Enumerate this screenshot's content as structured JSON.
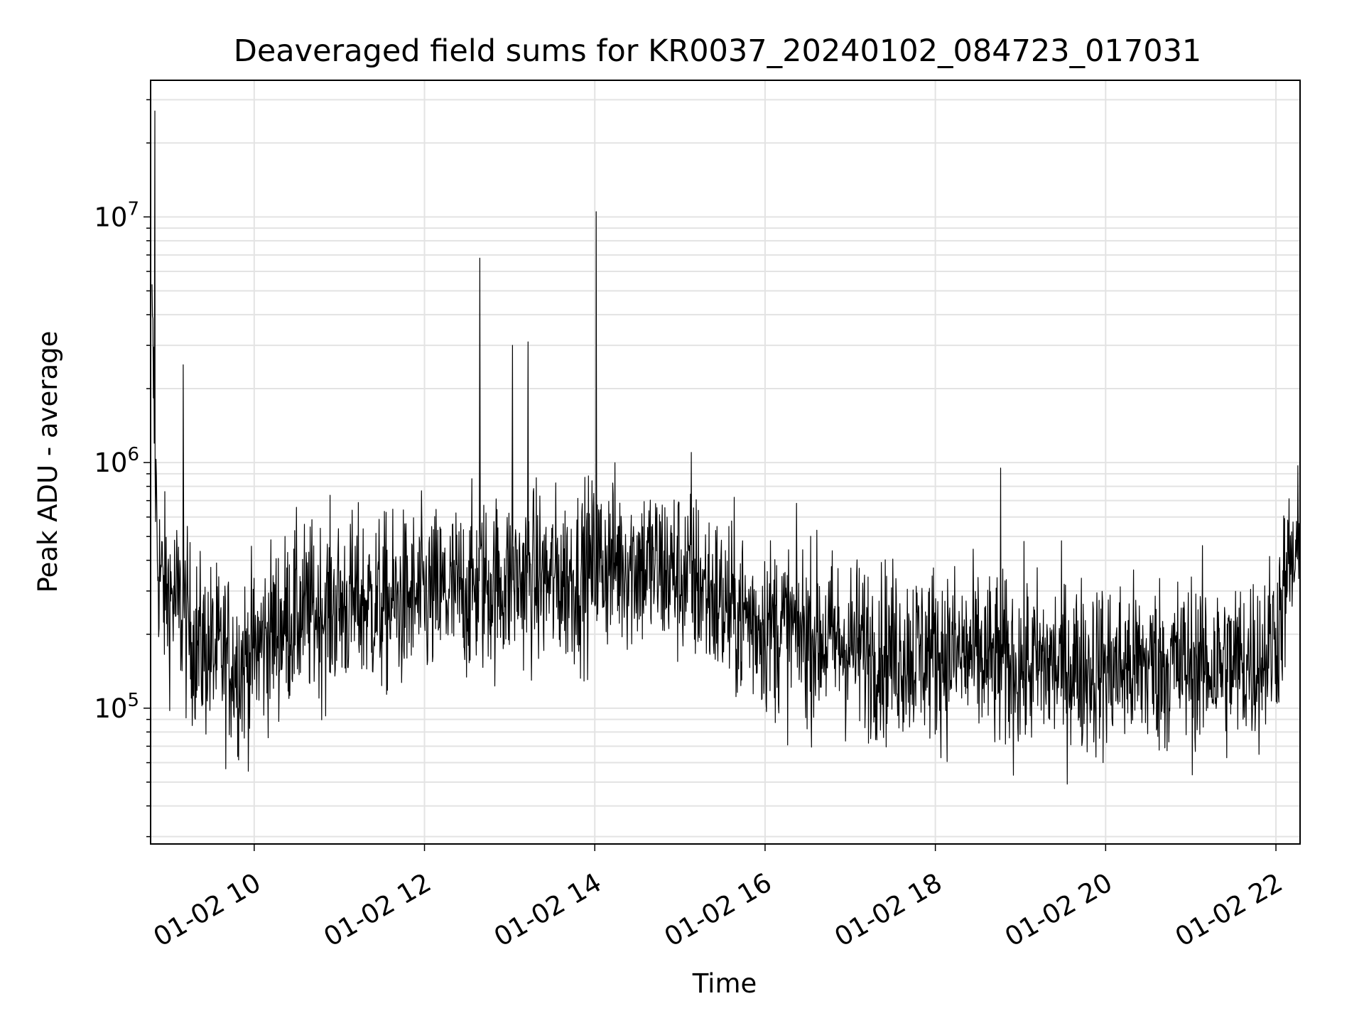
{
  "chart_data": {
    "type": "line",
    "title": "Deaveraged field sums for KR0037_20240102_084723_017031",
    "xlabel": "Time",
    "ylabel": "Peak ADU - average",
    "y_scale": "log",
    "ylim": [
      28000,
      36000000
    ],
    "xlim": [
      "2024-01-02 08:47",
      "2024-01-02 22:17"
    ],
    "grid": true,
    "line_color": "#000000",
    "x_ticks": [
      {
        "t": "2024-01-02 10:00",
        "label": "01-02 10"
      },
      {
        "t": "2024-01-02 12:00",
        "label": "01-02 12"
      },
      {
        "t": "2024-01-02 14:00",
        "label": "01-02 14"
      },
      {
        "t": "2024-01-02 16:00",
        "label": "01-02 16"
      },
      {
        "t": "2024-01-02 18:00",
        "label": "01-02 18"
      },
      {
        "t": "2024-01-02 20:00",
        "label": "01-02 20"
      },
      {
        "t": "2024-01-02 22:00",
        "label": "01-02 22"
      }
    ],
    "y_ticks": [
      {
        "value": 100000,
        "base": "10",
        "exp": "5"
      },
      {
        "value": 1000000,
        "base": "10",
        "exp": "6"
      },
      {
        "value": 10000000,
        "base": "10",
        "exp": "7"
      }
    ],
    "series": [
      {
        "x": [
          "2024-01-02 08:48",
          "2024-01-02 08:52",
          "2024-01-02 08:56",
          "2024-01-02 09:04",
          "2024-01-02 09:12",
          "2024-01-02 09:20",
          "2024-01-02 09:30",
          "2024-01-02 09:40",
          "2024-01-02 09:50",
          "2024-01-02 10:00",
          "2024-01-02 10:15",
          "2024-01-02 10:30",
          "2024-01-02 10:45",
          "2024-01-02 11:00",
          "2024-01-02 11:15",
          "2024-01-02 11:30",
          "2024-01-02 11:45",
          "2024-01-02 12:00",
          "2024-01-02 12:15",
          "2024-01-02 12:30",
          "2024-01-02 12:40",
          "2024-01-02 12:50",
          "2024-01-02 13:02",
          "2024-01-02 13:15",
          "2024-01-02 13:30",
          "2024-01-02 13:45",
          "2024-01-02 14:00",
          "2024-01-02 14:15",
          "2024-01-02 14:30",
          "2024-01-02 14:45",
          "2024-01-02 15:00",
          "2024-01-02 15:15",
          "2024-01-02 15:30",
          "2024-01-02 16:00",
          "2024-01-02 16:30",
          "2024-01-02 17:00",
          "2024-01-02 17:30",
          "2024-01-02 18:00",
          "2024-01-02 18:30",
          "2024-01-02 18:45",
          "2024-01-02 19:00",
          "2024-01-02 19:30",
          "2024-01-02 20:00",
          "2024-01-02 20:30",
          "2024-01-02 21:00",
          "2024-01-02 21:30",
          "2024-01-02 21:50",
          "2024-01-02 22:00",
          "2024-01-02 22:10",
          "2024-01-02 22:17"
        ],
        "y": [
          3500000,
          400000,
          300000,
          280000,
          220000,
          180000,
          170000,
          160000,
          150000,
          170000,
          210000,
          240000,
          250000,
          260000,
          270000,
          260000,
          270000,
          280000,
          290000,
          300000,
          320000,
          320000,
          330000,
          340000,
          330000,
          340000,
          380000,
          400000,
          390000,
          370000,
          350000,
          320000,
          260000,
          220000,
          200000,
          180000,
          170000,
          170000,
          160000,
          150000,
          150000,
          150000,
          145000,
          150000,
          150000,
          150000,
          160000,
          200000,
          380000,
          400000
        ],
        "peaks": [
          {
            "x": "2024-01-02 08:50",
            "y": 27000000
          },
          {
            "x": "2024-01-02 09:10",
            "y": 2500000
          },
          {
            "x": "2024-01-02 12:39",
            "y": 6800000
          },
          {
            "x": "2024-01-02 13:02",
            "y": 3000000
          },
          {
            "x": "2024-01-02 13:13",
            "y": 3100000
          },
          {
            "x": "2024-01-02 14:01",
            "y": 10500000
          },
          {
            "x": "2024-01-02 15:08",
            "y": 1100000
          },
          {
            "x": "2024-01-02 18:46",
            "y": 950000
          }
        ]
      }
    ]
  }
}
